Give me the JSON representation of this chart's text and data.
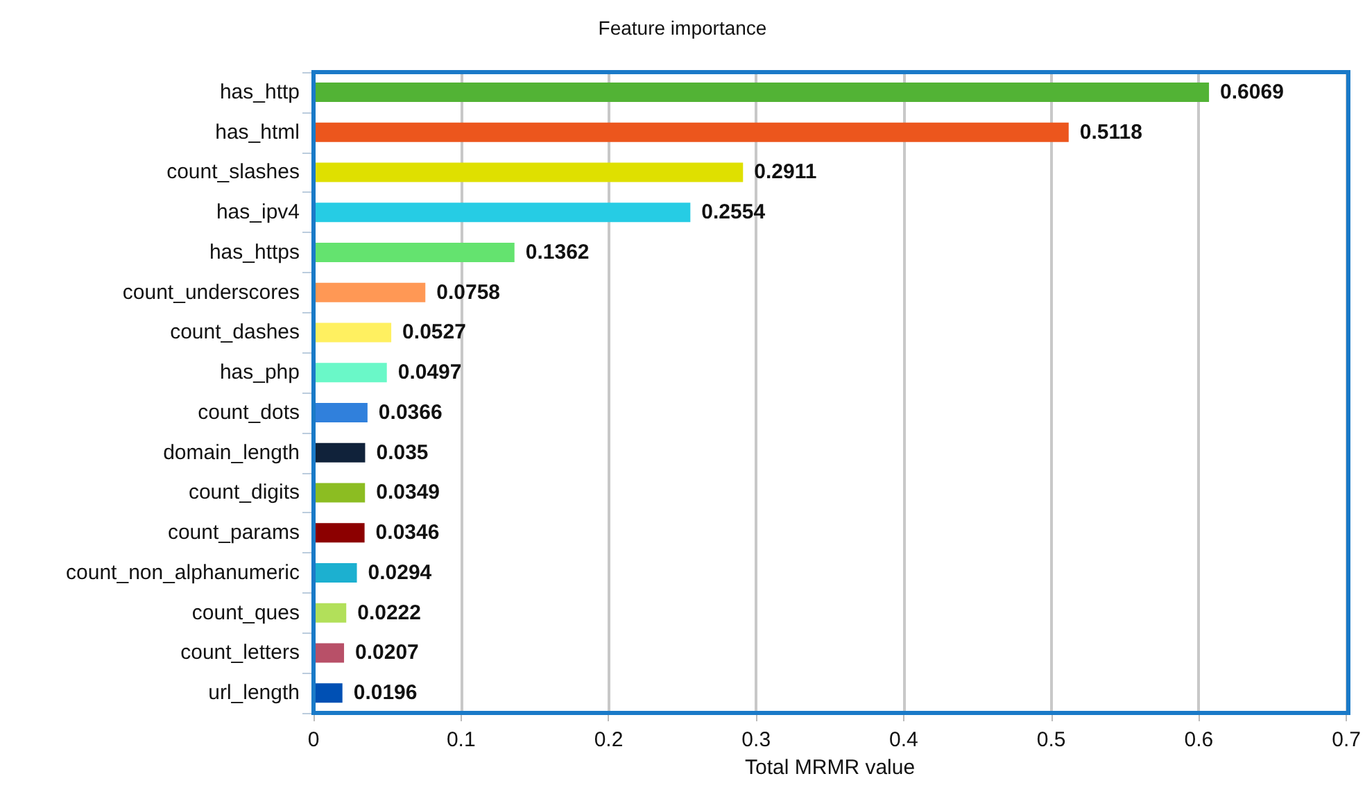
{
  "chart_data": {
    "type": "bar",
    "orientation": "horizontal",
    "title": "Feature importance",
    "xlabel": "Total MRMR value",
    "categories": [
      "has_http",
      "has_html",
      "count_slashes",
      "has_ipv4",
      "has_https",
      "count_underscores",
      "count_dashes",
      "has_php",
      "count_dots",
      "domain_length",
      "count_digits",
      "count_params",
      "count_non_alphanumeric",
      "count_ques",
      "count_letters",
      "url_length"
    ],
    "values": [
      0.6069,
      0.5118,
      0.2911,
      0.2554,
      0.1362,
      0.0758,
      0.0527,
      0.0497,
      0.0366,
      0.035,
      0.0349,
      0.0346,
      0.0294,
      0.0222,
      0.0207,
      0.0196
    ],
    "colors": [
      "#52b335",
      "#ec561d",
      "#dfe000",
      "#26cce4",
      "#64e36f",
      "#ff9855",
      "#fff060",
      "#6af8c8",
      "#3080dc",
      "#10223a",
      "#8cbd22",
      "#8c0000",
      "#1cb0d0",
      "#b2e05a",
      "#b85068",
      "#0050b4"
    ],
    "xlim": [
      0,
      0.7
    ],
    "xticks": [
      0,
      0.1,
      0.2,
      0.3,
      0.4,
      0.5,
      0.6,
      0.7
    ],
    "grid": "x",
    "data_labels": true
  }
}
